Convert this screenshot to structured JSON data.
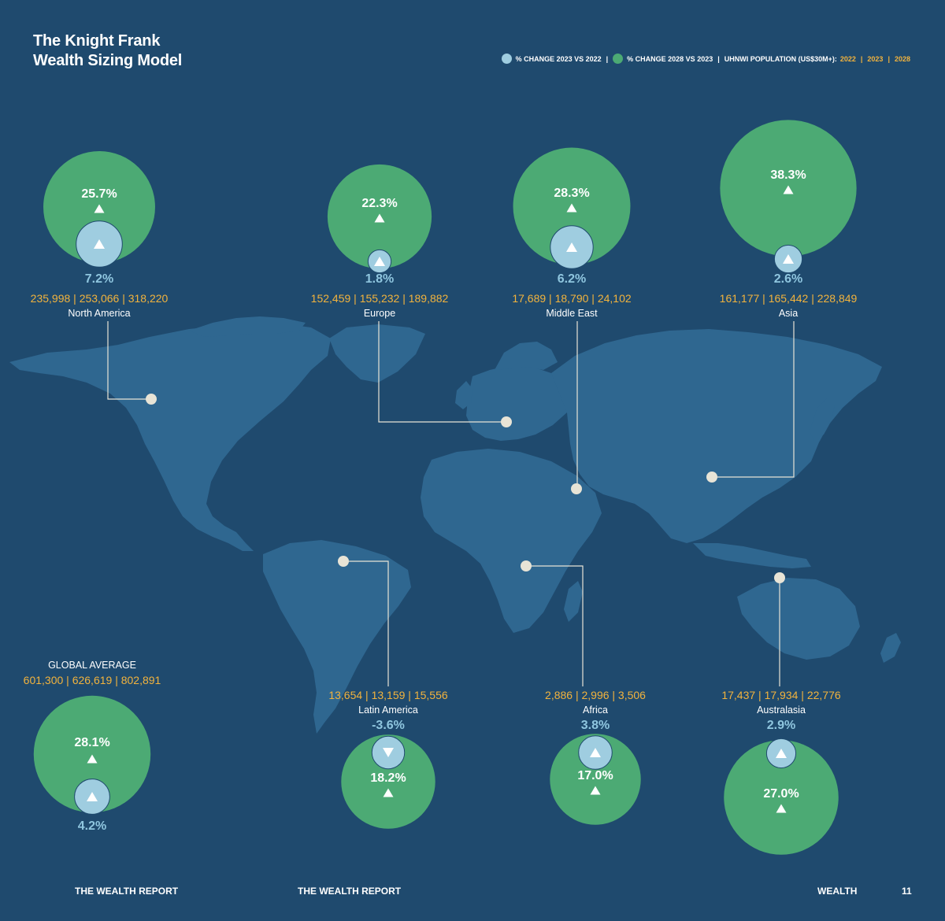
{
  "header": {
    "title_line1": "The Knight Frank",
    "title_line2": "Wealth Sizing Model"
  },
  "legend": {
    "change_2023_label": "% CHANGE 2023 VS 2022",
    "change_2028_label": "% CHANGE 2028 VS 2023",
    "population_label": "UHNWI POPULATION (US$30M+):",
    "year_2022": "2022",
    "year_2023": "2023",
    "year_2028": "2028",
    "separator": "|"
  },
  "colors": {
    "background": "#1f4a6e",
    "continent": "#2f6790",
    "green": "#4caa74",
    "light_blue": "#9fcde0",
    "light_blue_text": "#8fc6df",
    "orange": "#f2b33d",
    "marker": "#e8e4d6"
  },
  "chart_data": {
    "type": "bubble-map",
    "regions": [
      {
        "name": "North America",
        "change_2023_vs_2022": 7.2,
        "change_2028_vs_2023": 25.7,
        "population": {
          "2022": 235998,
          "2023": 253066,
          "2028": 318220
        },
        "change_2023_label": "7.2%",
        "change_2028_label": "25.7%",
        "population_label": "235,998 | 253,066 | 318,220",
        "direction_2023": "up",
        "direction_2028": "up"
      },
      {
        "name": "Europe",
        "change_2023_vs_2022": 1.8,
        "change_2028_vs_2023": 22.3,
        "population": {
          "2022": 152459,
          "2023": 155232,
          "2028": 189882
        },
        "change_2023_label": "1.8%",
        "change_2028_label": "22.3%",
        "population_label": "152,459 | 155,232 | 189,882",
        "direction_2023": "up",
        "direction_2028": "up"
      },
      {
        "name": "Middle East",
        "change_2023_vs_2022": 6.2,
        "change_2028_vs_2023": 28.3,
        "population": {
          "2022": 17689,
          "2023": 18790,
          "2028": 24102
        },
        "change_2023_label": "6.2%",
        "change_2028_label": "28.3%",
        "population_label": "17,689 | 18,790 | 24,102",
        "direction_2023": "up",
        "direction_2028": "up"
      },
      {
        "name": "Asia",
        "change_2023_vs_2022": 2.6,
        "change_2028_vs_2023": 38.3,
        "population": {
          "2022": 161177,
          "2023": 165442,
          "2028": 228849
        },
        "change_2023_label": "2.6%",
        "change_2028_label": "38.3%",
        "population_label": "161,177 | 165,442 | 228,849",
        "direction_2023": "up",
        "direction_2028": "up"
      },
      {
        "name": "Latin America",
        "change_2023_vs_2022": -3.6,
        "change_2028_vs_2023": 18.2,
        "population": {
          "2022": 13654,
          "2023": 13159,
          "2028": 15556
        },
        "change_2023_label": "-3.6%",
        "change_2028_label": "18.2%",
        "population_label": "13,654 | 13,159 | 15,556",
        "direction_2023": "down",
        "direction_2028": "up"
      },
      {
        "name": "Africa",
        "change_2023_vs_2022": 3.8,
        "change_2028_vs_2023": 17.0,
        "population": {
          "2022": 2886,
          "2023": 2996,
          "2028": 3506
        },
        "change_2023_label": "3.8%",
        "change_2028_label": "17.0%",
        "population_label": "2,886 | 2,996 | 3,506",
        "direction_2023": "up",
        "direction_2028": "up"
      },
      {
        "name": "Australasia",
        "change_2023_vs_2022": 2.9,
        "change_2028_vs_2023": 27.0,
        "population": {
          "2022": 17437,
          "2023": 17934,
          "2028": 22776
        },
        "change_2023_label": "2.9%",
        "change_2028_label": "27.0%",
        "population_label": "17,437 | 17,934 | 22,776",
        "direction_2023": "up",
        "direction_2028": "up"
      }
    ],
    "global": {
      "label": "GLOBAL AVERAGE",
      "change_2023_vs_2022": 4.2,
      "change_2028_vs_2023": 28.1,
      "population": {
        "2022": 601300,
        "2023": 626619,
        "2028": 802891
      },
      "change_2023_label": "4.2%",
      "change_2028_label": "28.1%",
      "population_label": "601,300 | 626,619 | 802,891"
    }
  },
  "footer": {
    "left_label": "THE WEALTH REPORT",
    "center_label": "THE WEALTH REPORT",
    "section_label": "WEALTH",
    "page_number": "11"
  }
}
